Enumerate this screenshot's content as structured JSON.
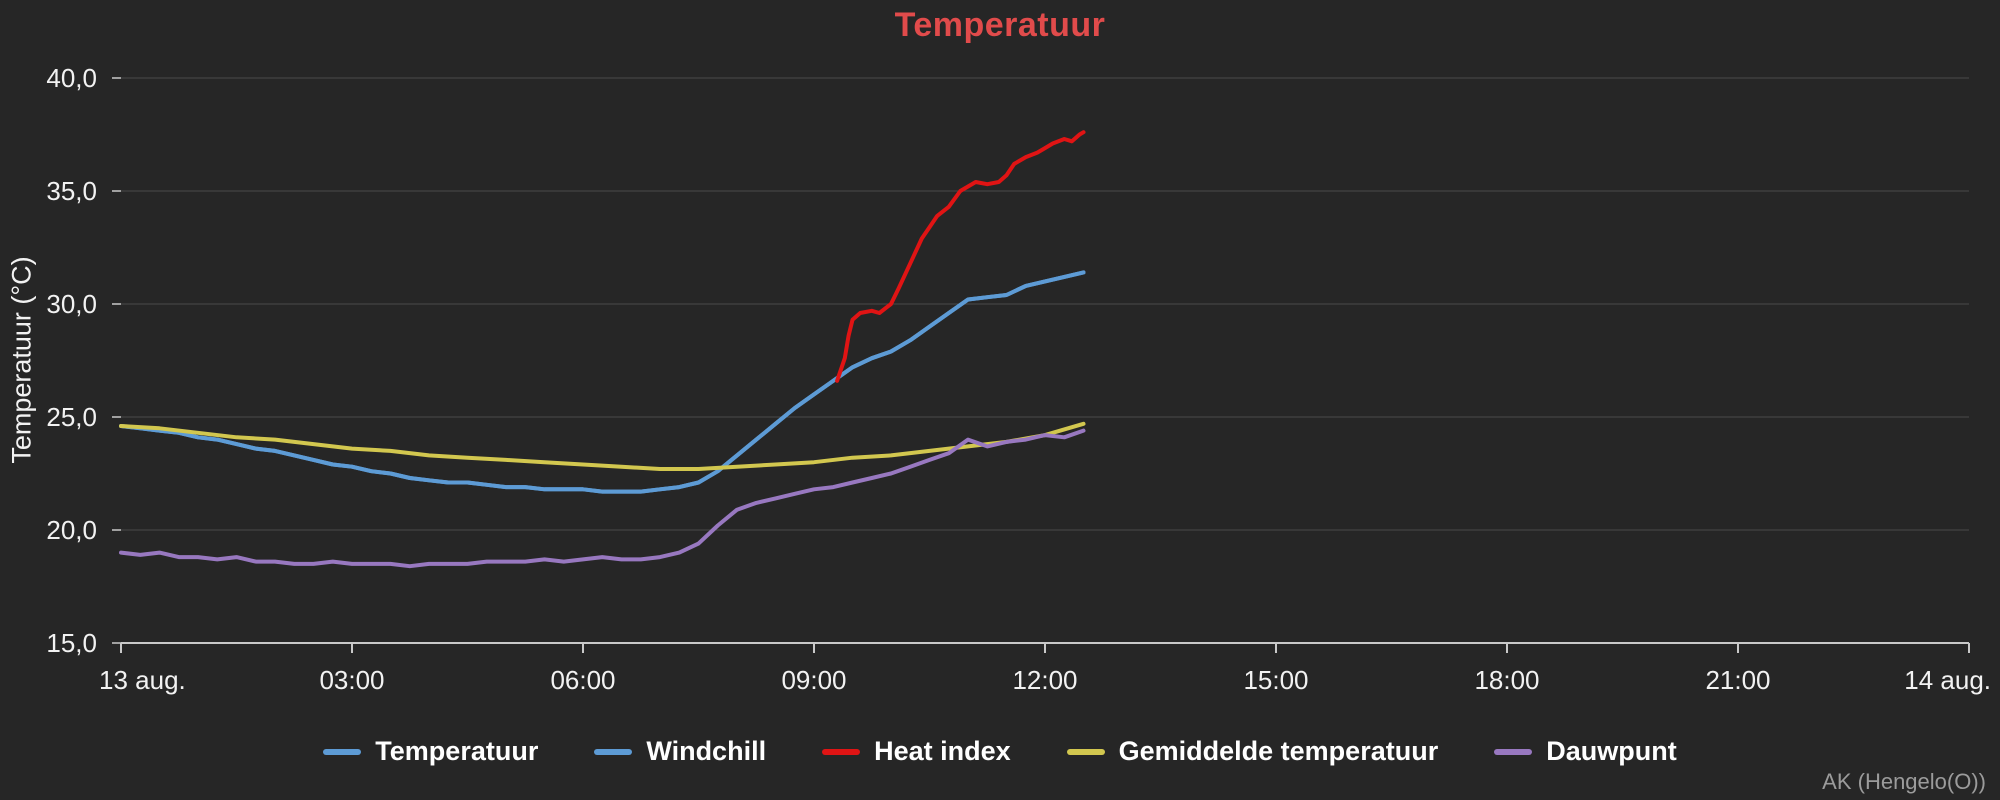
{
  "chart": {
    "title": "Temperatuur",
    "watermark": "AK (Hengelo(O))"
  },
  "colors": {
    "background": "#262626",
    "grid": "#4a4a4a",
    "axis": "#c9c9c9",
    "tick_text": "#f2f2f2",
    "title": "#e14b4b",
    "legend_text": "#ffffff",
    "watermark_text": "#9b9b9b"
  },
  "chart_data": {
    "type": "line",
    "title": "Temperatuur",
    "ylabel": "Temperatuur (°C)",
    "ylim": [
      15,
      40
    ],
    "yticks": [
      {
        "value": 15,
        "label": "15,0"
      },
      {
        "value": 20,
        "label": "20,0"
      },
      {
        "value": 25,
        "label": "25,0"
      },
      {
        "value": 30,
        "label": "30,0"
      },
      {
        "value": 35,
        "label": "35,0"
      },
      {
        "value": 40,
        "label": "40,0"
      }
    ],
    "xlim_hours": [
      0,
      24
    ],
    "xticks": [
      {
        "hour": 0,
        "label": "13 aug."
      },
      {
        "hour": 3,
        "label": "03:00"
      },
      {
        "hour": 6,
        "label": "06:00"
      },
      {
        "hour": 9,
        "label": "09:00"
      },
      {
        "hour": 12,
        "label": "12:00"
      },
      {
        "hour": 15,
        "label": "15:00"
      },
      {
        "hour": 18,
        "label": "18:00"
      },
      {
        "hour": 21,
        "label": "21:00"
      },
      {
        "hour": 24,
        "label": "14 aug."
      }
    ],
    "grid": true,
    "legend_position": "bottom",
    "series": [
      {
        "name": "Temperatuur",
        "color": "#5d9bd5",
        "points": [
          [
            0,
            24.6
          ],
          [
            0.25,
            24.5
          ],
          [
            0.5,
            24.4
          ],
          [
            0.75,
            24.3
          ],
          [
            1,
            24.1
          ],
          [
            1.25,
            24.0
          ],
          [
            1.5,
            23.8
          ],
          [
            1.75,
            23.6
          ],
          [
            2,
            23.5
          ],
          [
            2.25,
            23.3
          ],
          [
            2.5,
            23.1
          ],
          [
            2.75,
            22.9
          ],
          [
            3,
            22.8
          ],
          [
            3.25,
            22.6
          ],
          [
            3.5,
            22.5
          ],
          [
            3.75,
            22.3
          ],
          [
            4,
            22.2
          ],
          [
            4.25,
            22.1
          ],
          [
            4.5,
            22.1
          ],
          [
            4.75,
            22.0
          ],
          [
            5,
            21.9
          ],
          [
            5.25,
            21.9
          ],
          [
            5.5,
            21.8
          ],
          [
            5.75,
            21.8
          ],
          [
            6,
            21.8
          ],
          [
            6.25,
            21.7
          ],
          [
            6.5,
            21.7
          ],
          [
            6.75,
            21.7
          ],
          [
            7,
            21.8
          ],
          [
            7.25,
            21.9
          ],
          [
            7.5,
            22.1
          ],
          [
            7.75,
            22.6
          ],
          [
            8,
            23.3
          ],
          [
            8.25,
            24.0
          ],
          [
            8.5,
            24.7
          ],
          [
            8.75,
            25.4
          ],
          [
            9,
            26.0
          ],
          [
            9.25,
            26.6
          ],
          [
            9.5,
            27.2
          ],
          [
            9.75,
            27.6
          ],
          [
            10,
            27.9
          ],
          [
            10.25,
            28.4
          ],
          [
            10.5,
            29.0
          ],
          [
            10.75,
            29.6
          ],
          [
            11,
            30.2
          ],
          [
            11.25,
            30.3
          ],
          [
            11.5,
            30.4
          ],
          [
            11.75,
            30.8
          ],
          [
            12,
            31.0
          ],
          [
            12.25,
            31.2
          ],
          [
            12.5,
            31.4
          ]
        ]
      },
      {
        "name": "Windchill",
        "color": "#5d9bd5",
        "points": [
          [
            0,
            24.6
          ],
          [
            0.25,
            24.5
          ],
          [
            0.5,
            24.4
          ],
          [
            0.75,
            24.3
          ],
          [
            1,
            24.1
          ],
          [
            1.25,
            24.0
          ],
          [
            1.5,
            23.8
          ],
          [
            1.75,
            23.6
          ],
          [
            2,
            23.5
          ],
          [
            2.25,
            23.3
          ],
          [
            2.5,
            23.1
          ],
          [
            2.75,
            22.9
          ],
          [
            3,
            22.8
          ],
          [
            3.25,
            22.6
          ],
          [
            3.5,
            22.5
          ],
          [
            3.75,
            22.3
          ],
          [
            4,
            22.2
          ],
          [
            4.25,
            22.1
          ],
          [
            4.5,
            22.1
          ],
          [
            4.75,
            22.0
          ],
          [
            5,
            21.9
          ],
          [
            5.25,
            21.9
          ],
          [
            5.5,
            21.8
          ],
          [
            5.75,
            21.8
          ],
          [
            6,
            21.8
          ],
          [
            6.25,
            21.7
          ],
          [
            6.5,
            21.7
          ],
          [
            6.75,
            21.7
          ],
          [
            7,
            21.8
          ],
          [
            7.25,
            21.9
          ],
          [
            7.5,
            22.1
          ],
          [
            7.75,
            22.6
          ],
          [
            8,
            23.3
          ],
          [
            8.25,
            24.0
          ],
          [
            8.5,
            24.7
          ],
          [
            8.75,
            25.4
          ],
          [
            9,
            26.0
          ],
          [
            9.25,
            26.6
          ],
          [
            9.5,
            27.2
          ],
          [
            9.75,
            27.6
          ],
          [
            10,
            27.9
          ],
          [
            10.25,
            28.4
          ],
          [
            10.5,
            29.0
          ],
          [
            10.75,
            29.6
          ],
          [
            11,
            30.2
          ],
          [
            11.25,
            30.3
          ],
          [
            11.5,
            30.4
          ],
          [
            11.75,
            30.8
          ],
          [
            12,
            31.0
          ],
          [
            12.25,
            31.2
          ],
          [
            12.5,
            31.4
          ]
        ]
      },
      {
        "name": "Heat index",
        "color": "#e01414",
        "points": [
          [
            9.3,
            26.6
          ],
          [
            9.4,
            27.6
          ],
          [
            9.45,
            28.6
          ],
          [
            9.5,
            29.3
          ],
          [
            9.6,
            29.6
          ],
          [
            9.75,
            29.7
          ],
          [
            9.85,
            29.6
          ],
          [
            10,
            30.0
          ],
          [
            10.1,
            30.7
          ],
          [
            10.25,
            31.8
          ],
          [
            10.4,
            32.9
          ],
          [
            10.5,
            33.4
          ],
          [
            10.6,
            33.9
          ],
          [
            10.75,
            34.3
          ],
          [
            10.9,
            35.0
          ],
          [
            11,
            35.2
          ],
          [
            11.1,
            35.4
          ],
          [
            11.25,
            35.3
          ],
          [
            11.4,
            35.4
          ],
          [
            11.5,
            35.7
          ],
          [
            11.6,
            36.2
          ],
          [
            11.75,
            36.5
          ],
          [
            11.9,
            36.7
          ],
          [
            12,
            36.9
          ],
          [
            12.1,
            37.1
          ],
          [
            12.25,
            37.3
          ],
          [
            12.35,
            37.2
          ],
          [
            12.45,
            37.5
          ],
          [
            12.5,
            37.6
          ]
        ]
      },
      {
        "name": "Gemiddelde temperatuur",
        "color": "#d2c74f",
        "points": [
          [
            0,
            24.6
          ],
          [
            0.5,
            24.5
          ],
          [
            1,
            24.3
          ],
          [
            1.5,
            24.1
          ],
          [
            2,
            24.0
          ],
          [
            2.5,
            23.8
          ],
          [
            3,
            23.6
          ],
          [
            3.5,
            23.5
          ],
          [
            4,
            23.3
          ],
          [
            4.5,
            23.2
          ],
          [
            5,
            23.1
          ],
          [
            5.5,
            23.0
          ],
          [
            6,
            22.9
          ],
          [
            6.5,
            22.8
          ],
          [
            7,
            22.7
          ],
          [
            7.5,
            22.7
          ],
          [
            8,
            22.8
          ],
          [
            8.5,
            22.9
          ],
          [
            9,
            23.0
          ],
          [
            9.5,
            23.2
          ],
          [
            10,
            23.3
          ],
          [
            10.5,
            23.5
          ],
          [
            11,
            23.7
          ],
          [
            11.5,
            23.9
          ],
          [
            12,
            24.2
          ],
          [
            12.5,
            24.7
          ]
        ]
      },
      {
        "name": "Dauwpunt",
        "color": "#9878c0",
        "points": [
          [
            0,
            19.0
          ],
          [
            0.25,
            18.9
          ],
          [
            0.5,
            19.0
          ],
          [
            0.75,
            18.8
          ],
          [
            1,
            18.8
          ],
          [
            1.25,
            18.7
          ],
          [
            1.5,
            18.8
          ],
          [
            1.75,
            18.6
          ],
          [
            2,
            18.6
          ],
          [
            2.25,
            18.5
          ],
          [
            2.5,
            18.5
          ],
          [
            2.75,
            18.6
          ],
          [
            3,
            18.5
          ],
          [
            3.25,
            18.5
          ],
          [
            3.5,
            18.5
          ],
          [
            3.75,
            18.4
          ],
          [
            4,
            18.5
          ],
          [
            4.25,
            18.5
          ],
          [
            4.5,
            18.5
          ],
          [
            4.75,
            18.6
          ],
          [
            5,
            18.6
          ],
          [
            5.25,
            18.6
          ],
          [
            5.5,
            18.7
          ],
          [
            5.75,
            18.6
          ],
          [
            6,
            18.7
          ],
          [
            6.25,
            18.8
          ],
          [
            6.5,
            18.7
          ],
          [
            6.75,
            18.7
          ],
          [
            7,
            18.8
          ],
          [
            7.25,
            19.0
          ],
          [
            7.5,
            19.4
          ],
          [
            7.75,
            20.2
          ],
          [
            8,
            20.9
          ],
          [
            8.25,
            21.2
          ],
          [
            8.5,
            21.4
          ],
          [
            8.75,
            21.6
          ],
          [
            9,
            21.8
          ],
          [
            9.25,
            21.9
          ],
          [
            9.5,
            22.1
          ],
          [
            9.75,
            22.3
          ],
          [
            10,
            22.5
          ],
          [
            10.25,
            22.8
          ],
          [
            10.5,
            23.1
          ],
          [
            10.75,
            23.4
          ],
          [
            11,
            24.0
          ],
          [
            11.25,
            23.7
          ],
          [
            11.5,
            23.9
          ],
          [
            11.75,
            24.0
          ],
          [
            12,
            24.2
          ],
          [
            12.25,
            24.1
          ],
          [
            12.5,
            24.4
          ]
        ]
      }
    ]
  }
}
